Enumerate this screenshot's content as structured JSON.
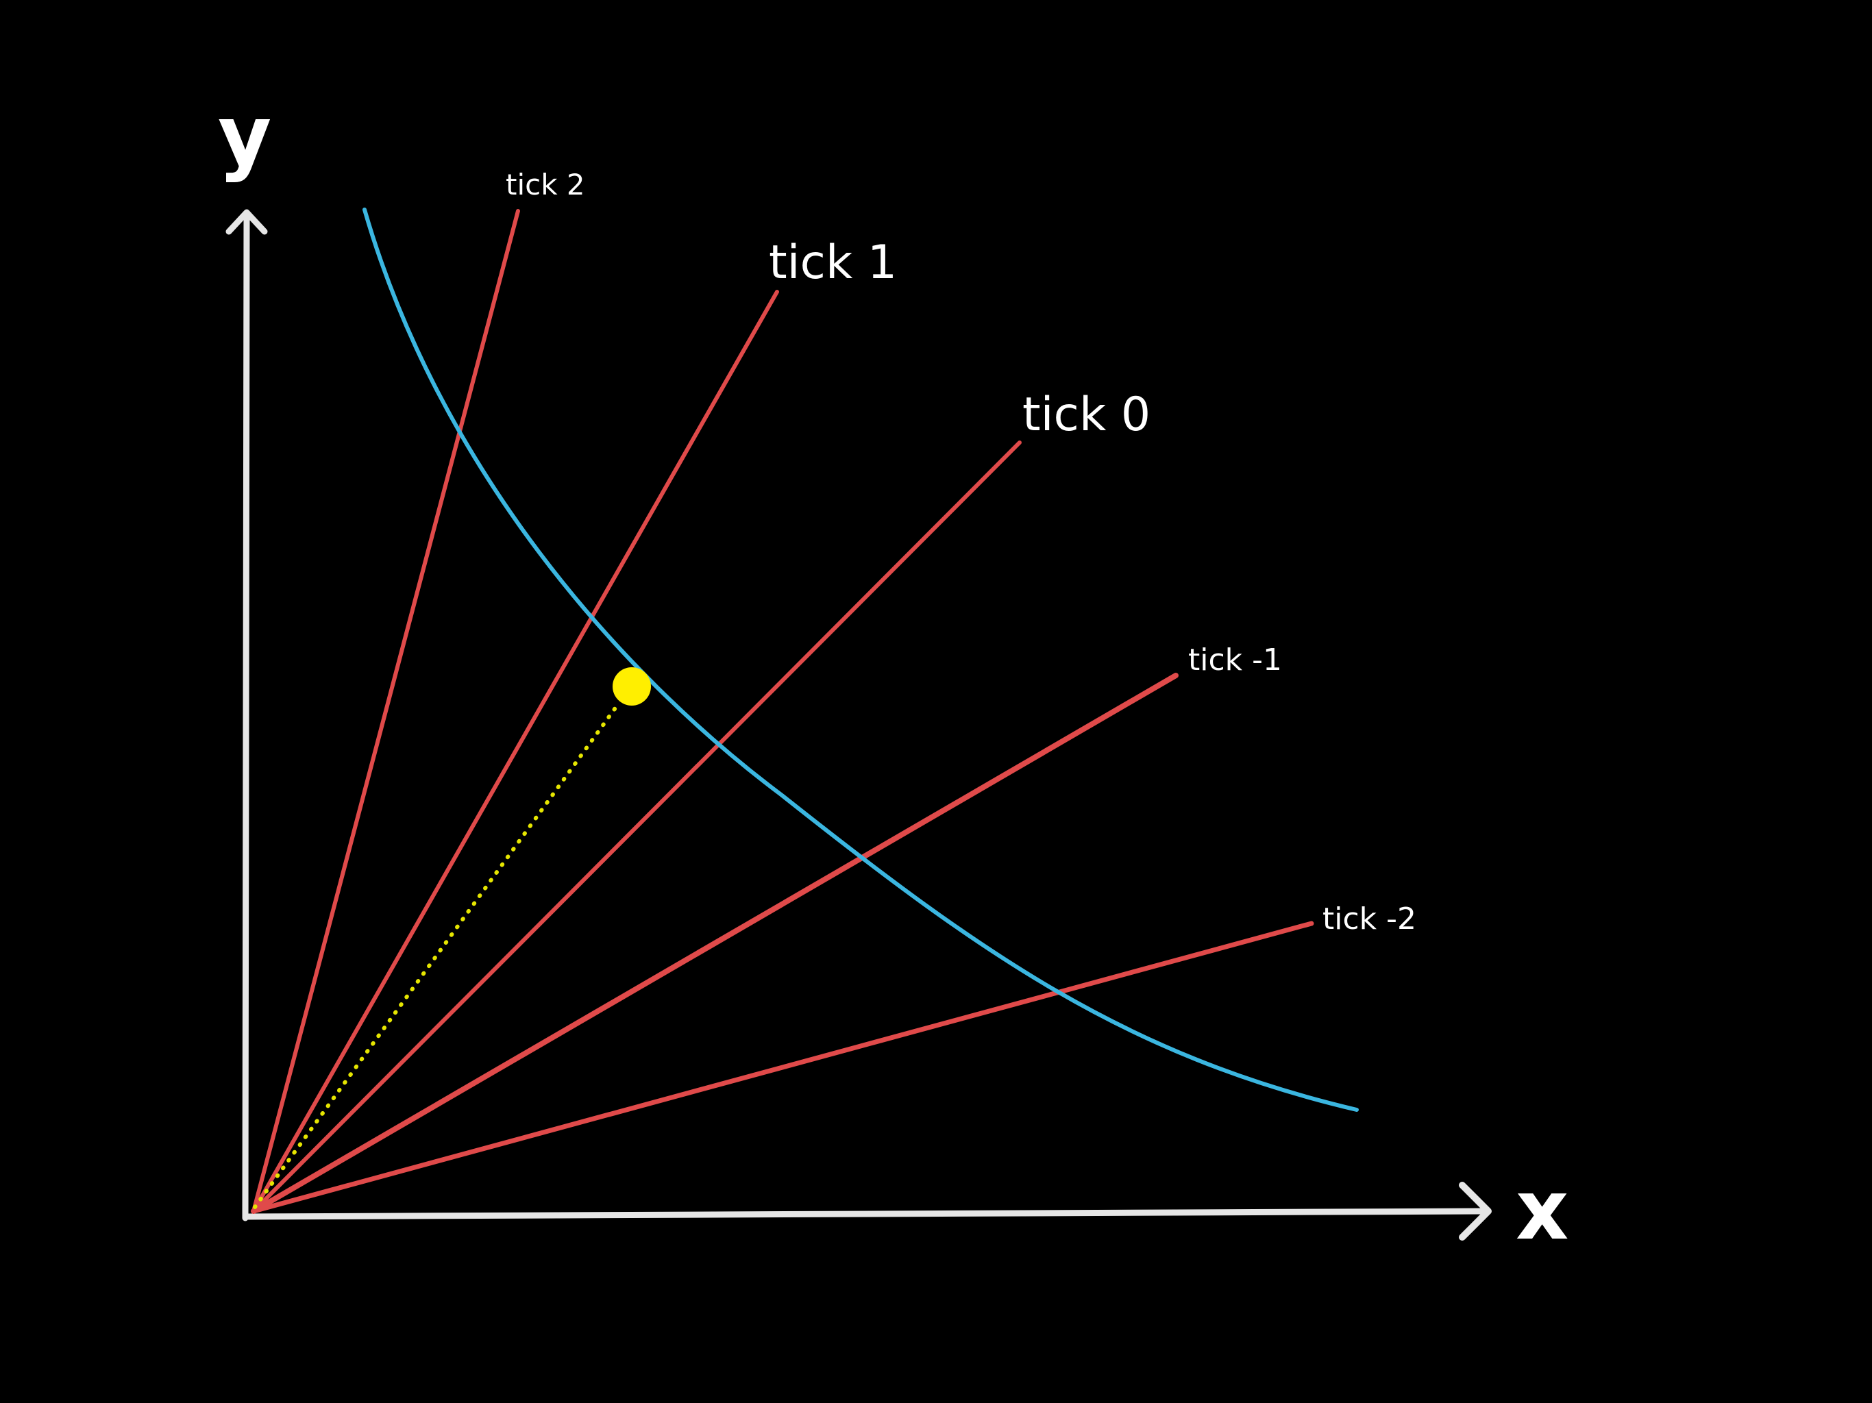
{
  "axes": {
    "x_label": "x",
    "y_label": "y",
    "color": "#e6e6e6"
  },
  "tick_lines": [
    {
      "label": "tick 2"
    },
    {
      "label": "tick 1"
    },
    {
      "label": "tick 0"
    },
    {
      "label": "tick -1"
    },
    {
      "label": "tick -2"
    }
  ],
  "colors": {
    "background": "#000000",
    "tick_line": "#e04a4a",
    "curve": "#3bb6e0",
    "point": "#ffef00",
    "dotted_line": "#e6e600",
    "label": "#ffffff"
  }
}
